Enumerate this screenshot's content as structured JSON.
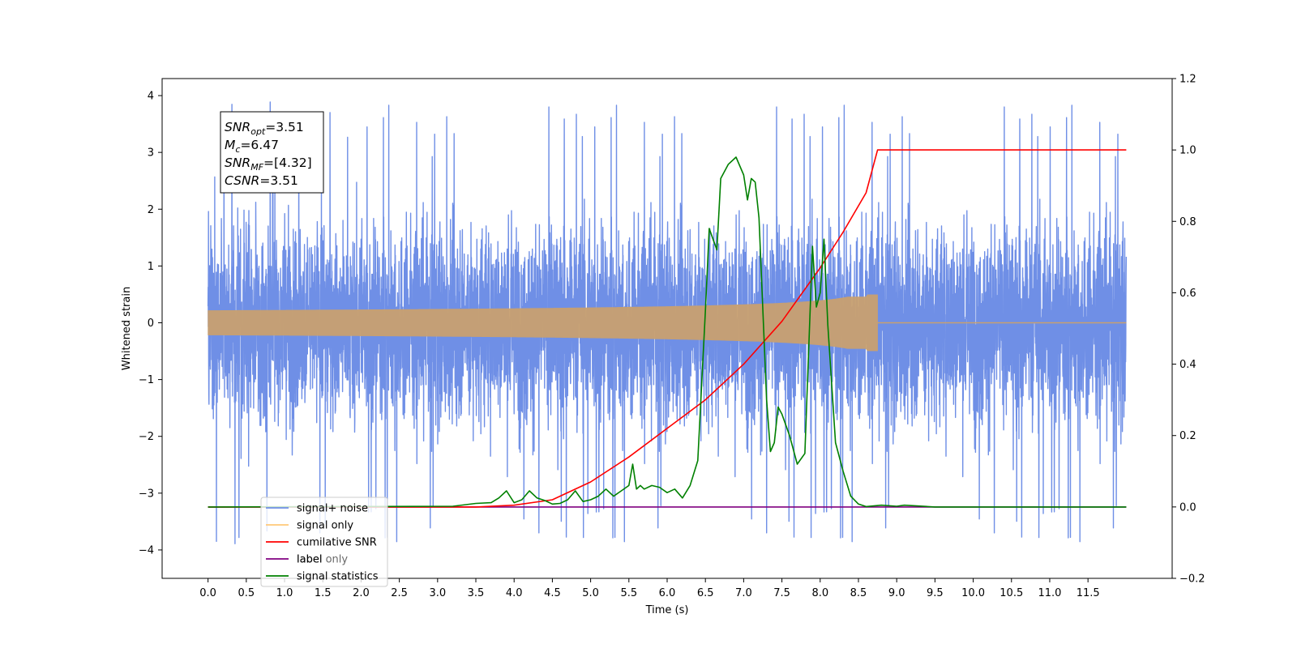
{
  "chart_data": {
    "type": "line",
    "xlabel": "Time (s)",
    "ylabel": "Whitened strain",
    "xlim": [
      -0.6,
      12.6
    ],
    "ylim": [
      -4.5,
      4.3
    ],
    "y2lim": [
      -0.2,
      1.2
    ],
    "x_ticks": [
      "0.0",
      "0.5",
      "1.0",
      "1.5",
      "2.0",
      "2.5",
      "3.0",
      "3.5",
      "4.0",
      "4.5",
      "5.0",
      "5.5",
      "6.0",
      "6.5",
      "7.0",
      "7.5",
      "8.0",
      "8.5",
      "9.0",
      "9.5",
      "10.0",
      "10.5",
      "11.0",
      "11.5"
    ],
    "y_ticks": [
      "4",
      "3",
      "2",
      "1",
      "0",
      "−1",
      "−2",
      "−3",
      "−4"
    ],
    "y2_ticks": [
      "1.2",
      "1.0",
      "0.8",
      "0.6",
      "0.4",
      "0.2",
      "0.0",
      "−0.2"
    ],
    "annotation": [
      {
        "base": "SNR",
        "sub": "opt",
        "value": "=3.51"
      },
      {
        "base": "M",
        "sub": "c",
        "value": "=6.47"
      },
      {
        "base": "SNR",
        "sub": "MF",
        "value": "=[4.32]"
      },
      {
        "base": "CSNR",
        "sub": "",
        "value": "=3.51"
      }
    ],
    "legend_position": "lower-left",
    "series": [
      {
        "name": "signal+ noise",
        "color": "#6f8fe6",
        "axis": "left",
        "x_range": [
          0,
          12
        ],
        "noise_sigma": 1.1,
        "y_extremes": [
          3.9,
          -4.1
        ]
      },
      {
        "name": "signal only",
        "color": "#ffc878",
        "axis": "left",
        "x_range": [
          0,
          8.75
        ],
        "chirp_peak_amplitude": 0.5,
        "merger_time": 8.75
      },
      {
        "name": "cumilative SNR",
        "color": "#ff0000",
        "axis": "right",
        "x": [
          0,
          3.5,
          4.0,
          4.5,
          5.0,
          5.5,
          6.0,
          6.5,
          7.0,
          7.5,
          8.0,
          8.3,
          8.6,
          8.75,
          12.0
        ],
        "y": [
          0,
          0,
          0.005,
          0.02,
          0.07,
          0.14,
          0.22,
          0.3,
          0.4,
          0.52,
          0.67,
          0.77,
          0.88,
          1.0,
          1.0
        ]
      },
      {
        "name": "label",
        "color": "#800080",
        "axis": "right",
        "x": [
          0,
          12.0
        ],
        "y": [
          0,
          0
        ]
      },
      {
        "name": "label only",
        "color": "#808080",
        "axis": "right",
        "hidden": true
      },
      {
        "name": "signal statistics",
        "color": "#008000",
        "axis": "right",
        "x": [
          0,
          3.2,
          3.5,
          3.7,
          3.8,
          3.9,
          4.0,
          4.1,
          4.2,
          4.3,
          4.4,
          4.5,
          4.6,
          4.7,
          4.8,
          4.9,
          5.0,
          5.1,
          5.2,
          5.3,
          5.4,
          5.5,
          5.55,
          5.6,
          5.65,
          5.7,
          5.8,
          5.9,
          6.0,
          6.1,
          6.2,
          6.3,
          6.4,
          6.5,
          6.55,
          6.6,
          6.65,
          6.7,
          6.8,
          6.9,
          7.0,
          7.05,
          7.1,
          7.15,
          7.2,
          7.3,
          7.35,
          7.4,
          7.45,
          7.5,
          7.6,
          7.7,
          7.8,
          7.9,
          7.95,
          8.0,
          8.05,
          8.1,
          8.2,
          8.3,
          8.4,
          8.5,
          8.6,
          8.8,
          9.0,
          9.1,
          9.5,
          12.0
        ],
        "y": [
          0,
          0.002,
          0.01,
          0.012,
          0.025,
          0.045,
          0.012,
          0.02,
          0.045,
          0.025,
          0.018,
          0.008,
          0.01,
          0.02,
          0.045,
          0.015,
          0.02,
          0.03,
          0.05,
          0.03,
          0.045,
          0.06,
          0.12,
          0.05,
          0.06,
          0.05,
          0.06,
          0.055,
          0.04,
          0.05,
          0.025,
          0.06,
          0.13,
          0.55,
          0.78,
          0.75,
          0.72,
          0.92,
          0.96,
          0.98,
          0.93,
          0.86,
          0.92,
          0.91,
          0.81,
          0.3,
          0.155,
          0.18,
          0.28,
          0.26,
          0.2,
          0.12,
          0.15,
          0.73,
          0.56,
          0.6,
          0.75,
          0.51,
          0.18,
          0.1,
          0.03,
          0.008,
          0.001,
          0.005,
          0.002,
          0.005,
          0.0,
          0.0
        ]
      }
    ]
  }
}
